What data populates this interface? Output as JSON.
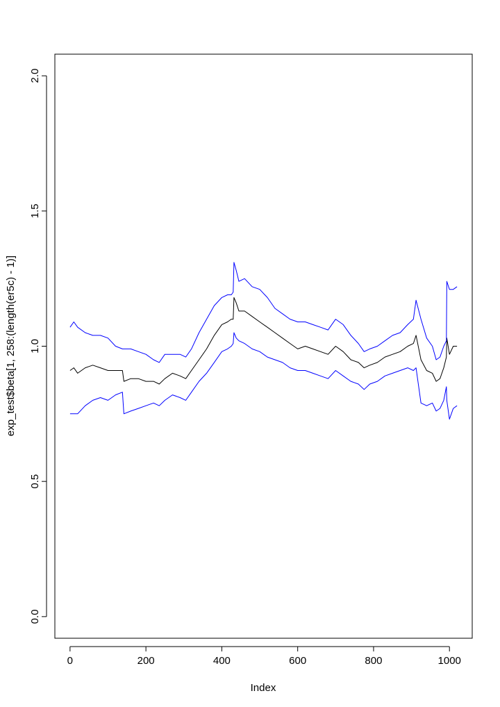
{
  "chart_data": {
    "type": "line",
    "title": "",
    "xlabel": "Index",
    "ylabel": "exp_test$beta[1, 258:(length(er5c) - 1)]",
    "xlim": [
      -40,
      1060
    ],
    "ylim": [
      -0.08,
      2.08
    ],
    "x_ticks": [
      0,
      200,
      400,
      600,
      800,
      1000
    ],
    "y_ticks": [
      0.0,
      0.5,
      1.0,
      1.5,
      2.0
    ],
    "x_tick_labels": [
      "0",
      "200",
      "400",
      "600",
      "800",
      "1000"
    ],
    "y_tick_labels": [
      "0.0",
      "0.5",
      "1.0",
      "1.5",
      "2.0"
    ],
    "grid": false,
    "x": [
      0,
      10,
      20,
      40,
      60,
      80,
      100,
      120,
      138,
      142,
      160,
      180,
      200,
      220,
      235,
      250,
      270,
      290,
      305,
      320,
      340,
      360,
      380,
      400,
      415,
      425,
      430,
      432,
      438,
      445,
      460,
      480,
      500,
      520,
      540,
      560,
      580,
      600,
      620,
      640,
      660,
      680,
      700,
      720,
      740,
      760,
      775,
      790,
      810,
      830,
      850,
      870,
      890,
      905,
      912,
      925,
      940,
      955,
      965,
      975,
      985,
      992,
      993,
      1000,
      1010,
      1020
    ],
    "series": [
      {
        "color": "#000000",
        "values": [
          0.91,
          0.92,
          0.9,
          0.92,
          0.93,
          0.92,
          0.91,
          0.91,
          0.91,
          0.87,
          0.88,
          0.88,
          0.87,
          0.87,
          0.86,
          0.88,
          0.9,
          0.89,
          0.88,
          0.91,
          0.95,
          0.99,
          1.04,
          1.08,
          1.09,
          1.1,
          1.1,
          1.18,
          1.16,
          1.13,
          1.13,
          1.11,
          1.09,
          1.07,
          1.05,
          1.03,
          1.01,
          0.99,
          1.0,
          0.99,
          0.98,
          0.97,
          1.0,
          0.98,
          0.95,
          0.94,
          0.92,
          0.93,
          0.94,
          0.96,
          0.97,
          0.98,
          1.0,
          1.01,
          1.04,
          0.95,
          0.91,
          0.9,
          0.87,
          0.88,
          0.92,
          0.96,
          1.03,
          0.97,
          1.0,
          1.0
        ]
      },
      {
        "color": "#0000ff",
        "values": [
          1.07,
          1.09,
          1.07,
          1.05,
          1.04,
          1.04,
          1.03,
          1.0,
          0.99,
          0.99,
          0.99,
          0.98,
          0.97,
          0.95,
          0.94,
          0.97,
          0.97,
          0.97,
          0.96,
          0.99,
          1.05,
          1.1,
          1.15,
          1.18,
          1.19,
          1.19,
          1.2,
          1.31,
          1.28,
          1.24,
          1.25,
          1.22,
          1.21,
          1.18,
          1.14,
          1.12,
          1.1,
          1.09,
          1.09,
          1.08,
          1.07,
          1.06,
          1.1,
          1.08,
          1.04,
          1.01,
          0.98,
          0.99,
          1.0,
          1.02,
          1.04,
          1.05,
          1.08,
          1.1,
          1.17,
          1.1,
          1.03,
          1.0,
          0.95,
          0.96,
          1.0,
          1.02,
          1.24,
          1.21,
          1.21,
          1.22
        ]
      },
      {
        "color": "#0000ff",
        "values": [
          0.75,
          0.75,
          0.75,
          0.78,
          0.8,
          0.81,
          0.8,
          0.82,
          0.83,
          0.75,
          0.76,
          0.77,
          0.78,
          0.79,
          0.78,
          0.8,
          0.82,
          0.81,
          0.8,
          0.83,
          0.87,
          0.9,
          0.94,
          0.98,
          0.99,
          1.0,
          1.01,
          1.05,
          1.03,
          1.02,
          1.01,
          0.99,
          0.98,
          0.96,
          0.95,
          0.94,
          0.92,
          0.91,
          0.91,
          0.9,
          0.89,
          0.88,
          0.91,
          0.89,
          0.87,
          0.86,
          0.84,
          0.86,
          0.87,
          0.89,
          0.9,
          0.91,
          0.92,
          0.91,
          0.92,
          0.79,
          0.78,
          0.79,
          0.76,
          0.77,
          0.8,
          0.85,
          0.8,
          0.73,
          0.77,
          0.78
        ]
      }
    ]
  }
}
